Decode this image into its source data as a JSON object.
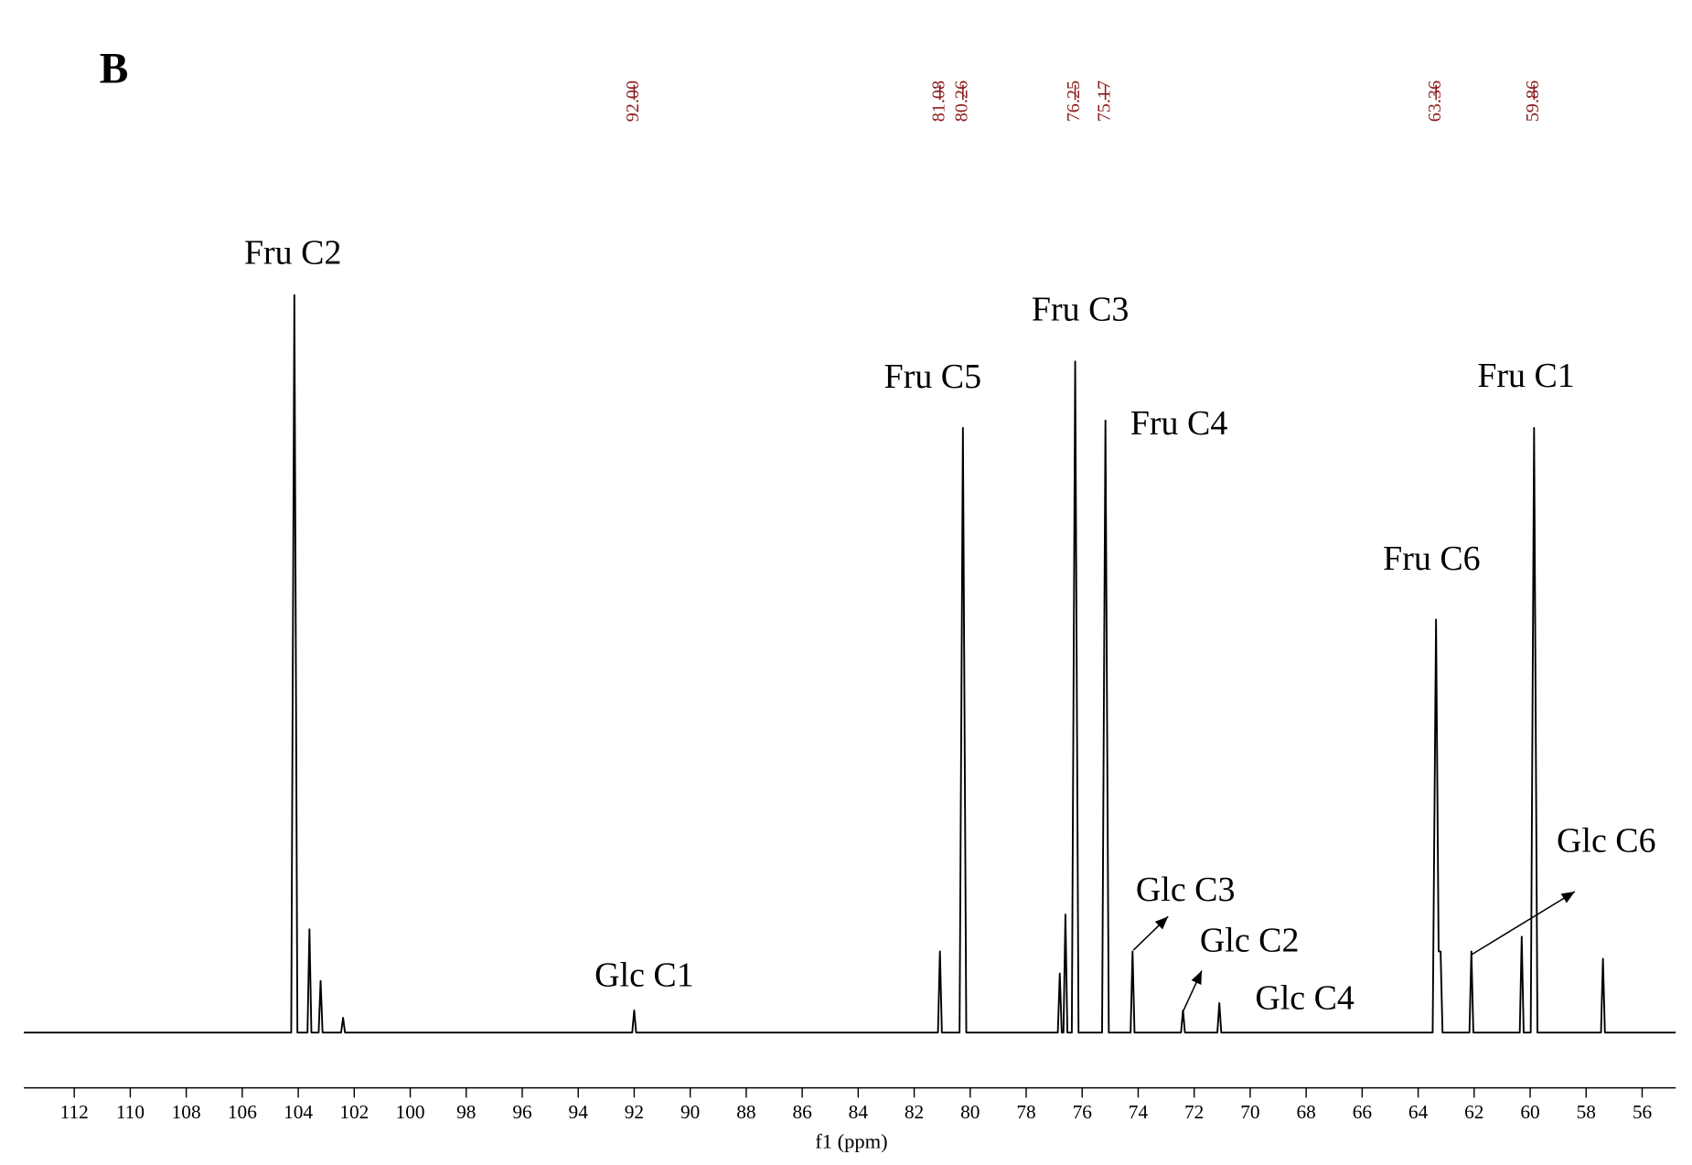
{
  "chart_data": {
    "type": "line",
    "panel": "B",
    "xlabel": "f1 (ppm)",
    "xlim": [
      113.8,
      54.8
    ],
    "xticks": [
      112,
      110,
      108,
      106,
      104,
      102,
      100,
      98,
      96,
      94,
      92,
      90,
      88,
      86,
      84,
      82,
      80,
      78,
      76,
      74,
      72,
      70,
      68,
      66,
      64,
      62,
      60,
      58,
      56
    ],
    "ylim": [
      0,
      100
    ],
    "color": "#000000",
    "peak_label_color": "#8b1a1a",
    "peak_labels": [
      {
        "value": 92,
        "label": "92.00"
      },
      {
        "value": 81.08,
        "label": "81.08"
      },
      {
        "value": 80.26,
        "label": "80.26"
      },
      {
        "value": 76.25,
        "label": "76.25"
      },
      {
        "value": 75.17,
        "label": "75.17"
      },
      {
        "value": 63.36,
        "label": "63.36"
      },
      {
        "value": 59.86,
        "label": "59.86"
      }
    ],
    "annotations": [
      "Fru C2",
      "Fru C3",
      "Fru C5",
      "Fru C4",
      "Fru C1",
      "Fru C6",
      "Glc C6",
      "Glc C3",
      "Glc C2",
      "Glc C1",
      "Glc C4"
    ],
    "x": [
      113.8,
      104.25,
      104.14,
      104.03,
      103.67,
      103.6,
      103.53,
      103.27,
      103.2,
      103.13,
      102.47,
      102.4,
      102.33,
      92.07,
      92.0,
      91.93,
      81.15,
      81.08,
      81.01,
      80.38,
      80.26,
      80.14,
      76.87,
      76.8,
      76.73,
      76.67,
      76.6,
      76.53,
      76.37,
      76.25,
      76.13,
      75.29,
      75.17,
      75.05,
      74.27,
      74.2,
      74.13,
      72.47,
      72.4,
      72.33,
      71.17,
      71.1,
      71.03,
      63.48,
      63.36,
      63.27,
      63.2,
      63.13,
      62.17,
      62.1,
      62.03,
      60.37,
      60.3,
      60.23,
      59.98,
      59.86,
      59.74,
      57.47,
      57.4,
      57.33,
      54.8
    ],
    "values": [
      0,
      0,
      100,
      0,
      0,
      14,
      0,
      0,
      7,
      0,
      0,
      2,
      0,
      0,
      3,
      0,
      0,
      11,
      0,
      0,
      82,
      0,
      0,
      8,
      0,
      0,
      16,
      0,
      0,
      91,
      0,
      0,
      83,
      0,
      0,
      11,
      0,
      0,
      3,
      0,
      0,
      4,
      0,
      0,
      56,
      11,
      11,
      0,
      0,
      11,
      0,
      0,
      13,
      0,
      0,
      82,
      0,
      0,
      10,
      0,
      0
    ]
  }
}
